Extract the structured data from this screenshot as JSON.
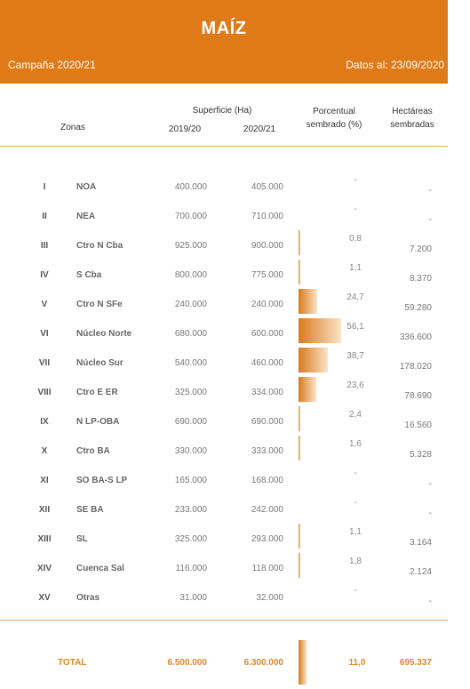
{
  "header": {
    "title": "MAÍZ",
    "campaign": "Campaña 2020/21",
    "date": "Datos al: 23/09/2020"
  },
  "columns": {
    "zonas": "Zonas",
    "superficie": "Superficie (Ha)",
    "y1": "2019/20",
    "y2": "2020/21",
    "porcentual_1": "Porcentual",
    "porcentual_2": "sembrado (%)",
    "hectareas_1": "Hectáreas",
    "hectareas_2": "sembradas"
  },
  "rows": [
    {
      "roman": "I",
      "zone": "NOA",
      "v1": "400.000",
      "v2": "405.000",
      "pct": "-",
      "pct_value": 0,
      "ha": "-"
    },
    {
      "roman": "II",
      "zone": "NEA",
      "v1": "700.000",
      "v2": "710.000",
      "pct": "-",
      "pct_value": 0,
      "ha": "-"
    },
    {
      "roman": "III",
      "zone": "Ctro N Cba",
      "v1": "925.000",
      "v2": "900.000",
      "pct": "0,8",
      "pct_value": 0.8,
      "ha": "7.200"
    },
    {
      "roman": "IV",
      "zone": "S Cba",
      "v1": "800.000",
      "v2": "775.000",
      "pct": "1,1",
      "pct_value": 1.1,
      "ha": "8.370"
    },
    {
      "roman": "V",
      "zone": "Ctro N SFe",
      "v1": "240.000",
      "v2": "240.000",
      "pct": "24,7",
      "pct_value": 24.7,
      "ha": "59.280"
    },
    {
      "roman": "VI",
      "zone": "Núcleo Norte",
      "v1": "680.000",
      "v2": "600.000",
      "pct": "56,1",
      "pct_value": 56.1,
      "ha": "336.600"
    },
    {
      "roman": "VII",
      "zone": "Núcleo Sur",
      "v1": "540.000",
      "v2": "460.000",
      "pct": "38,7",
      "pct_value": 38.7,
      "ha": "178.020"
    },
    {
      "roman": "VIII",
      "zone": "Ctro E ER",
      "v1": "325.000",
      "v2": "334.000",
      "pct": "23,6",
      "pct_value": 23.6,
      "ha": "78.690"
    },
    {
      "roman": "IX",
      "zone": "N LP-OBA",
      "v1": "690.000",
      "v2": "690.000",
      "pct": "2,4",
      "pct_value": 2.4,
      "ha": "16.560"
    },
    {
      "roman": "X",
      "zone": "Ctro BA",
      "v1": "330.000",
      "v2": "333.000",
      "pct": "1,6",
      "pct_value": 1.6,
      "ha": "5.328"
    },
    {
      "roman": "XI",
      "zone": "SO BA-S LP",
      "v1": "165.000",
      "v2": "168.000",
      "pct": "-",
      "pct_value": 0,
      "ha": "-"
    },
    {
      "roman": "XII",
      "zone": "SE BA",
      "v1": "233.000",
      "v2": "242.000",
      "pct": "-",
      "pct_value": 0,
      "ha": "-"
    },
    {
      "roman": "XIII",
      "zone": "SL",
      "v1": "325.000",
      "v2": "293.000",
      "pct": "1,1",
      "pct_value": 1.1,
      "ha": "3.164"
    },
    {
      "roman": "XIV",
      "zone": "Cuenca Sal",
      "v1": "116.000",
      "v2": "118.000",
      "pct": "1,8",
      "pct_value": 1.8,
      "ha": "2.124"
    },
    {
      "roman": "XV",
      "zone": "Otras",
      "v1": "31.000",
      "v2": "32.000",
      "pct": "-",
      "pct_value": 0,
      "ha": "-"
    }
  ],
  "total": {
    "label": "TOTAL",
    "v1": "6.500.000",
    "v2": "6.300.000",
    "pct": "11,0",
    "pct_value": 11.0,
    "ha": "695.337"
  },
  "colors": {
    "accent": "#de7a17",
    "total_text": "#e0862a"
  }
}
